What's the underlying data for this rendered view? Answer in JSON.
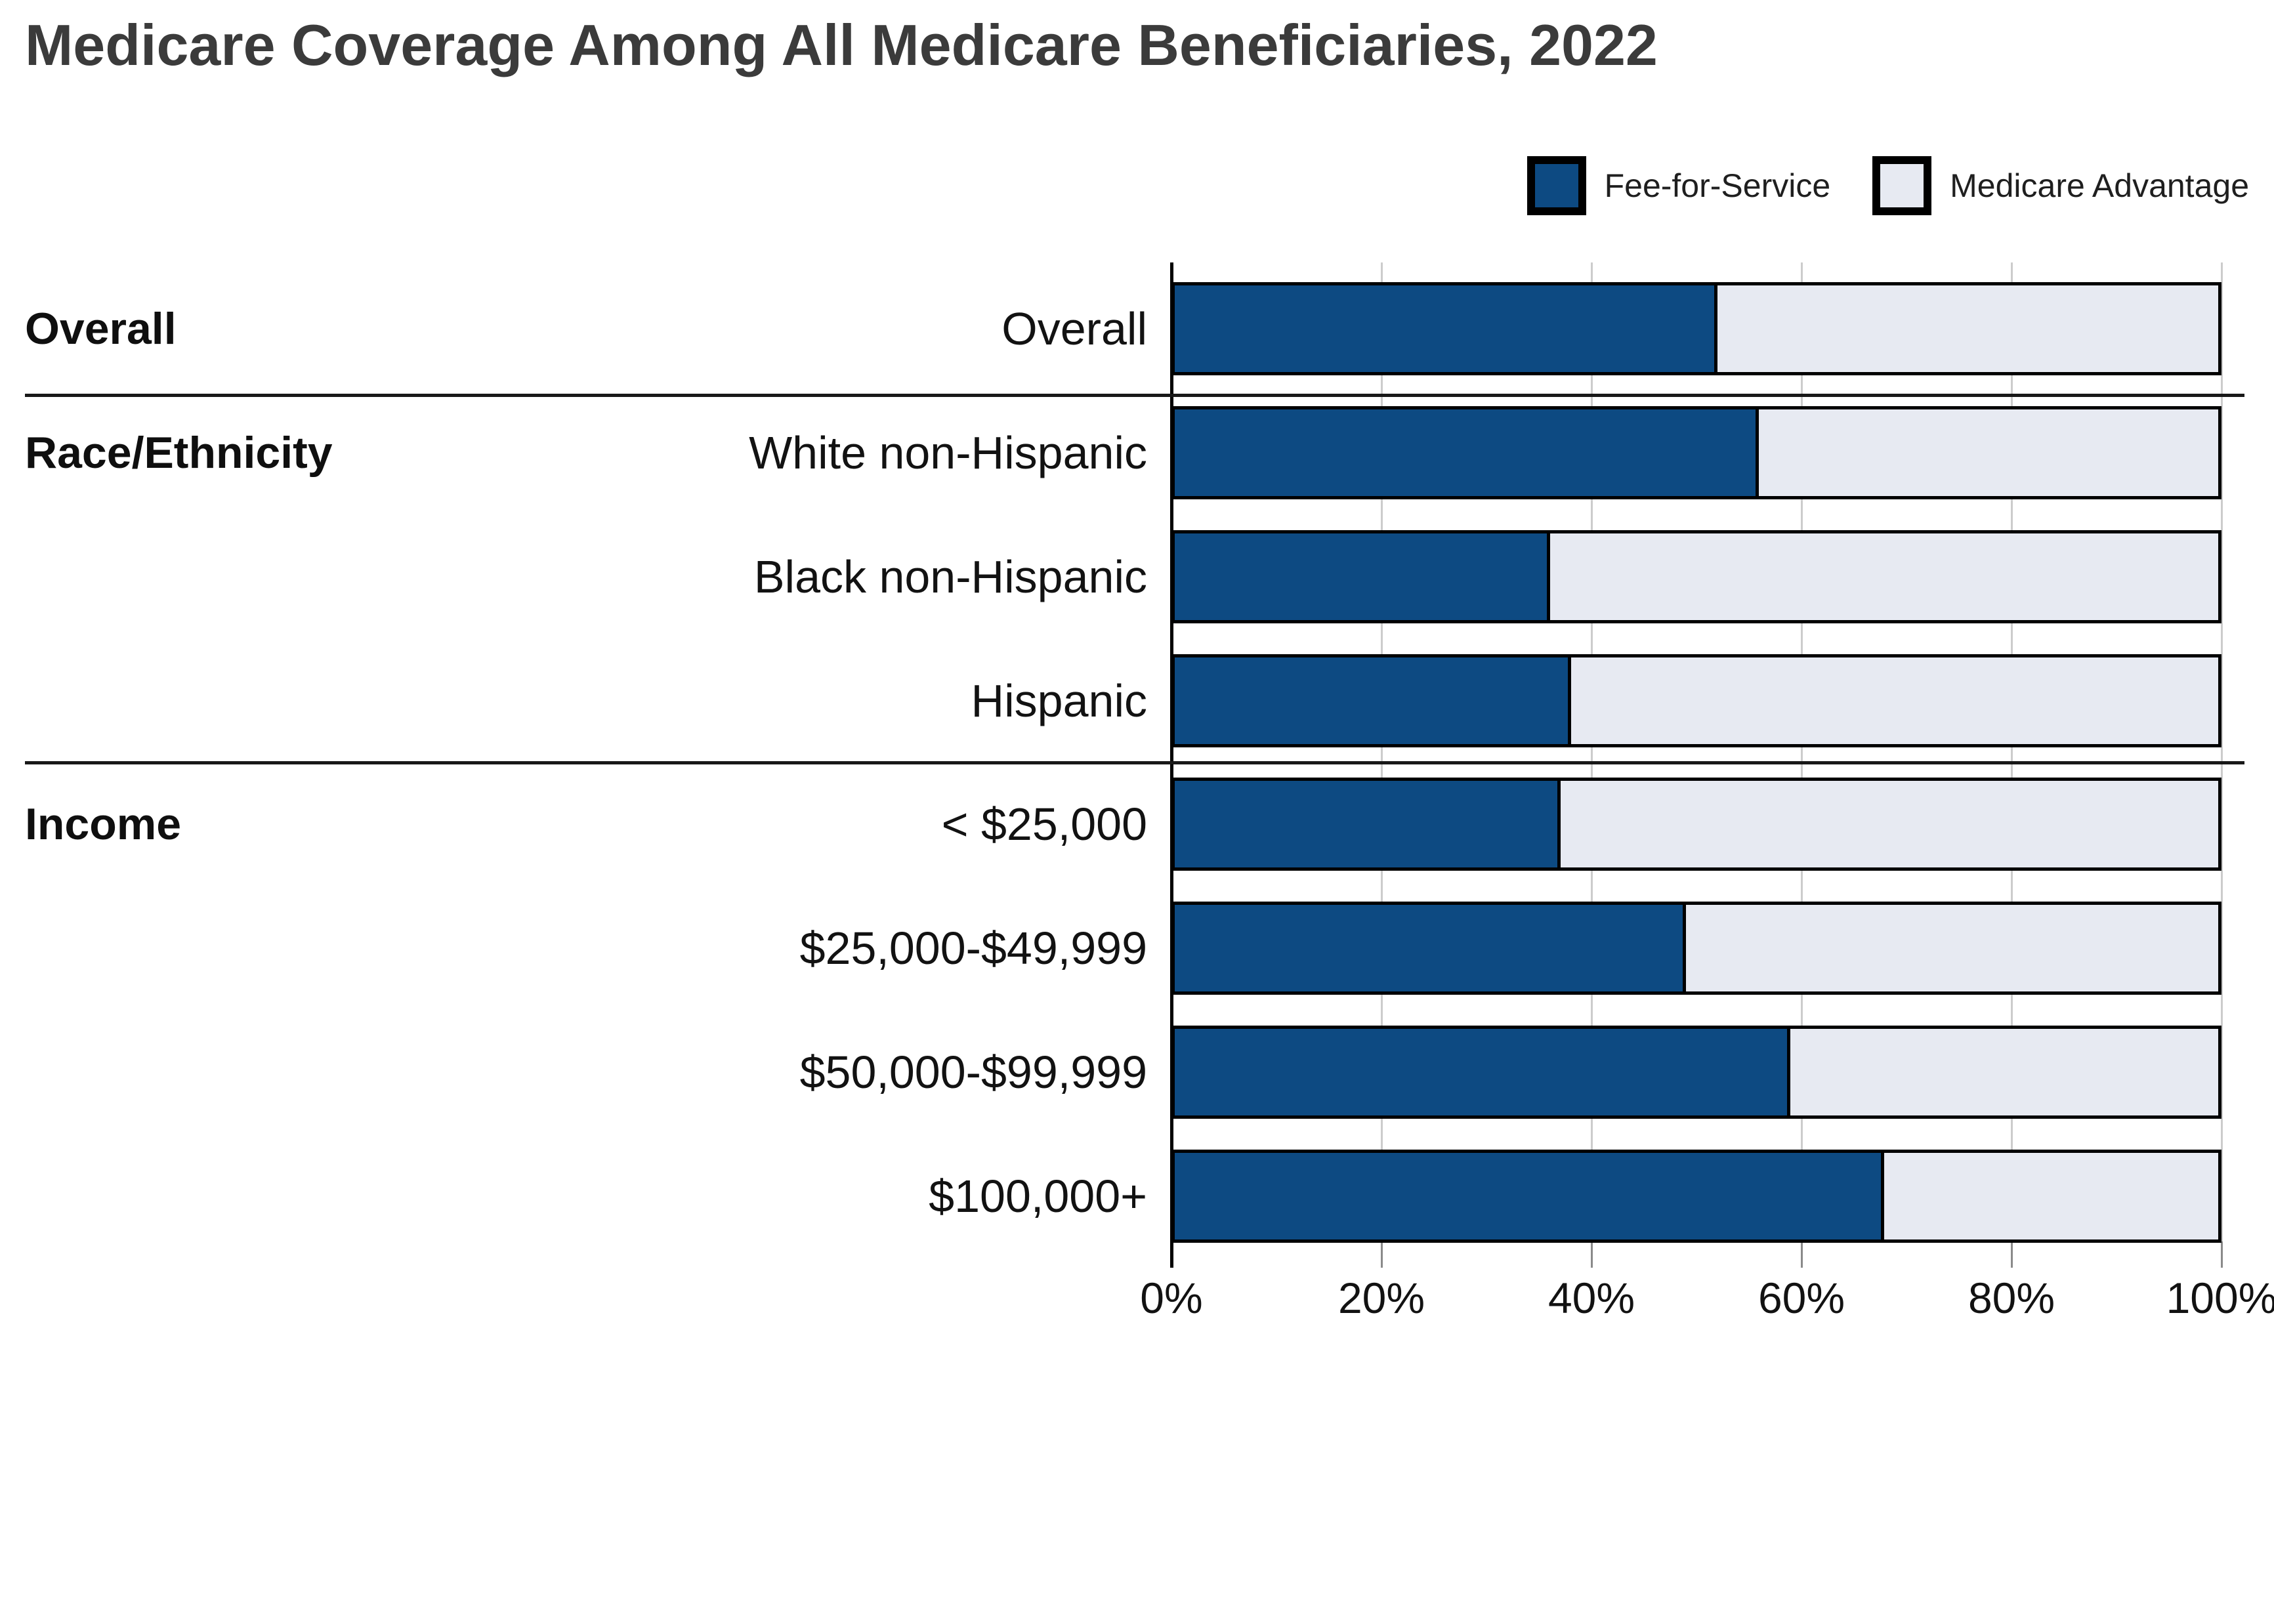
{
  "title": "Medicare Coverage Among All Medicare Beneficiaries, 2022",
  "legend": {
    "items": [
      {
        "label": "Fee-for-Service",
        "color": "#0d4a82"
      },
      {
        "label": "Medicare Advantage",
        "color": "#e7eaf2"
      }
    ]
  },
  "colors": {
    "fee_for_service": "#0d4a82",
    "medicare_advantage": "#e7eaf2",
    "bar_border": "#000000",
    "gridline": "#cccccc",
    "separator": "#181818",
    "title_text": "#3b3b3b",
    "label_text": "#121212"
  },
  "sections": [
    {
      "label": "Overall",
      "row_index": 0
    },
    {
      "label": "Race/Ethnicity",
      "row_index": 1
    },
    {
      "label": "Income",
      "row_index": 4
    }
  ],
  "chart_data": {
    "type": "bar",
    "orientation": "horizontal",
    "stacked": true,
    "title": "Medicare Coverage Among All Medicare Beneficiaries, 2022",
    "categories": [
      "Overall",
      "White non-Hispanic",
      "Black non-Hispanic",
      "Hispanic",
      "< $25,000",
      "$25,000-$49,999",
      "$50,000-$99,999",
      "$100,000+"
    ],
    "series": [
      {
        "name": "Fee-for-Service",
        "values": [
          52,
          56,
          36,
          38,
          37,
          49,
          59,
          68
        ]
      },
      {
        "name": "Medicare Advantage",
        "values": [
          48,
          44,
          64,
          62,
          63,
          51,
          41,
          32
        ]
      }
    ],
    "x_ticks": [
      "0%",
      "20%",
      "40%",
      "60%",
      "80%",
      "100%"
    ],
    "xlim": [
      0,
      100
    ],
    "unit": "percent",
    "grid": true,
    "legend_position": "top-right"
  }
}
